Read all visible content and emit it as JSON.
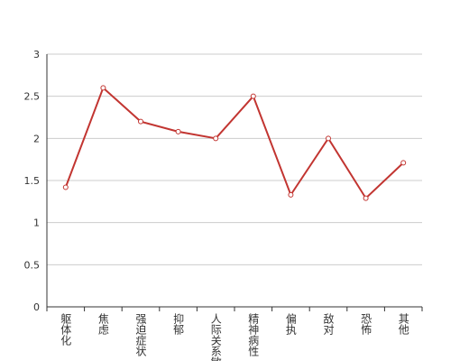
{
  "chart_data": {
    "type": "line",
    "categories": [
      "躯体化",
      "焦虑",
      "强迫症状",
      "抑郁",
      "人际关系敏感",
      "精神病性",
      "偏执",
      "敌对",
      "恐怖",
      "其他"
    ],
    "values": [
      1.42,
      2.6,
      2.2,
      2.08,
      2.0,
      2.5,
      1.33,
      2.0,
      1.29,
      1.71
    ],
    "color": "#c23531",
    "ylim": [
      0,
      3
    ],
    "yticks": [
      0,
      0.5,
      1,
      1.5,
      2,
      2.5,
      3
    ],
    "grid": true
  }
}
